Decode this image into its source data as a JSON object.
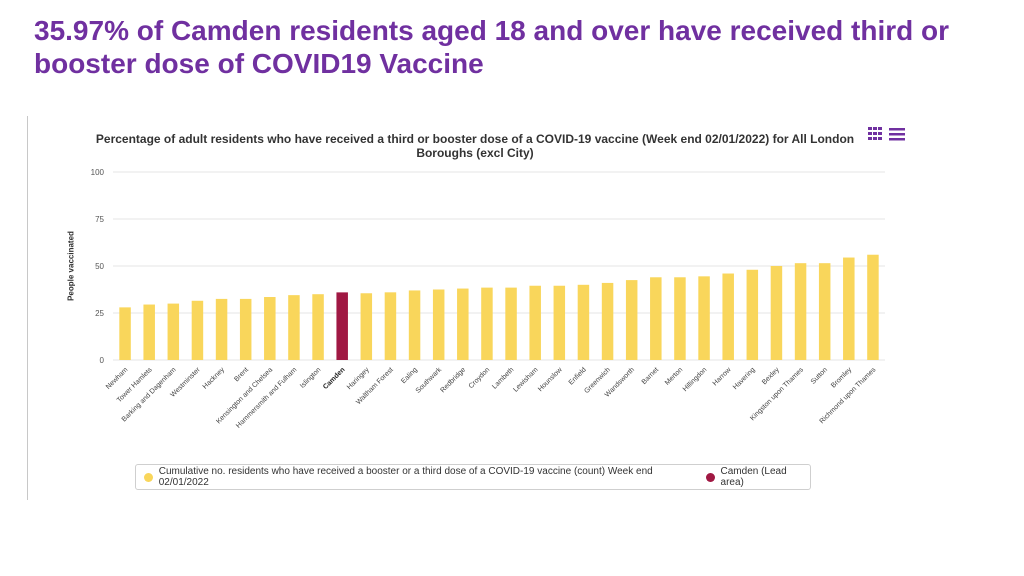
{
  "slide": {
    "title": "35.97% of Camden residents aged 18 and over have received third or booster dose of COVID19 Vaccine"
  },
  "chart_data": {
    "type": "bar",
    "title": "Percentage of adult residents who have received a third or booster dose of a COVID-19 vaccine (Week end 02/01/2022) for All London Boroughs (excl City)",
    "xlabel": "",
    "ylabel": "People vaccinated",
    "ylim": [
      0,
      100
    ],
    "yticks": [
      "0",
      "25",
      "50",
      "75",
      "100"
    ],
    "grid": true,
    "categories": [
      "Newham",
      "Tower Hamlets",
      "Barking and Dagenham",
      "Westminster",
      "Hackney",
      "Brent",
      "Kensington and Chelsea",
      "Hammersmith and Fulham",
      "Islington",
      "Camden",
      "Haringey",
      "Waltham Forest",
      "Ealing",
      "Southwark",
      "Redbridge",
      "Croydon",
      "Lambeth",
      "Lewisham",
      "Hounslow",
      "Enfield",
      "Greenwich",
      "Wandsworth",
      "Barnet",
      "Merton",
      "Hillingdon",
      "Harrow",
      "Havering",
      "Bexley",
      "Kingston upon Thames",
      "Sutton",
      "Bromley",
      "Richmond upon Thames"
    ],
    "values": [
      28,
      29.5,
      30,
      31.5,
      32.5,
      32.5,
      33.5,
      34.5,
      35,
      35.97,
      35.5,
      36,
      37,
      37.5,
      38,
      38.5,
      38.5,
      39.5,
      39.5,
      40,
      41,
      42.5,
      44,
      44,
      44.5,
      46,
      48,
      50,
      51.5,
      51.5,
      54.5,
      56
    ],
    "highlight": "Camden",
    "series_color": "#f9d65b",
    "highlight_color": "#a01843",
    "legend": [
      {
        "label": "Cumulative no. residents who have received a booster or a third dose of a COVID-19 vaccine (count) Week end 02/01/2022",
        "color": "#f9d65b"
      },
      {
        "label": "Camden (Lead area)",
        "color": "#a01843"
      }
    ]
  }
}
